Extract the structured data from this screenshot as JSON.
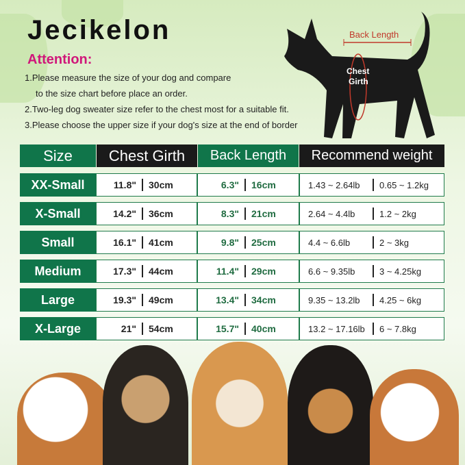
{
  "brand": "Jecikelon",
  "attention": "Attention:",
  "notes": [
    "1.Please measure the size of your dog and compare",
    "to the size chart before place an order.",
    "2.Two-leg dog sweater size refer to the chest most for a suitable fit.",
    "3.Please choose the upper size if your dog's size at the end of border"
  ],
  "diagram": {
    "back_length": "Back Length",
    "chest_girth_1": "Chest",
    "chest_girth_2": "Girth"
  },
  "colors": {
    "green": "#10754a",
    "accent": "#d0177a",
    "measure": "#c0392b"
  },
  "table": {
    "headers": [
      "Size",
      "Chest Girth",
      "Back Length",
      "Recommend weight"
    ],
    "rows": [
      {
        "size": "XX-Small",
        "chest_in": "11.8\"",
        "chest_cm": "30cm",
        "back_in": "6.3\"",
        "back_cm": "16cm",
        "weight_lb": "1.43 ~ 2.64lb",
        "weight_kg": "0.65 ~ 1.2kg"
      },
      {
        "size": "X-Small",
        "chest_in": "14.2\"",
        "chest_cm": "36cm",
        "back_in": "8.3\"",
        "back_cm": "21cm",
        "weight_lb": "2.64 ~ 4.4lb",
        "weight_kg": "1.2 ~ 2kg"
      },
      {
        "size": "Small",
        "chest_in": "16.1\"",
        "chest_cm": "41cm",
        "back_in": "9.8\"",
        "back_cm": "25cm",
        "weight_lb": "4.4 ~ 6.6lb",
        "weight_kg": "2 ~ 3kg"
      },
      {
        "size": "Medium",
        "chest_in": "17.3\"",
        "chest_cm": "44cm",
        "back_in": "11.4\"",
        "back_cm": "29cm",
        "weight_lb": "6.6 ~ 9.35lb",
        "weight_kg": "3 ~ 4.25kg"
      },
      {
        "size": "Large",
        "chest_in": "19.3\"",
        "chest_cm": "49cm",
        "back_in": "13.4\"",
        "back_cm": "34cm",
        "weight_lb": "9.35 ~ 13.2lb",
        "weight_kg": "4.25 ~ 6kg"
      },
      {
        "size": "X-Large",
        "chest_in": "21\"",
        "chest_cm": "54cm",
        "back_in": "15.7\"",
        "back_cm": "40cm",
        "weight_lb": "13.2 ~ 17.16lb",
        "weight_kg": "6 ~ 7.8kg"
      }
    ]
  }
}
